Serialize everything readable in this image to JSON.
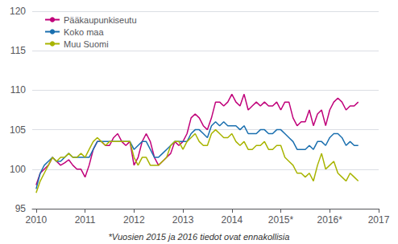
{
  "chart_data": {
    "type": "line",
    "annotations": [
      "*Vuosien 2015 ja 2016 tiedot ovat ennakollisia"
    ],
    "x": [
      2010,
      2010.083333,
      2010.166667,
      2010.25,
      2010.333333,
      2010.416667,
      2010.5,
      2010.583333,
      2010.666667,
      2010.75,
      2010.833333,
      2010.916667,
      2011,
      2011.083333,
      2011.166667,
      2011.25,
      2011.333333,
      2011.416667,
      2011.5,
      2011.583333,
      2011.666667,
      2011.75,
      2011.833333,
      2011.916667,
      2012,
      2012.083333,
      2012.166667,
      2012.25,
      2012.333333,
      2012.416667,
      2012.5,
      2012.583333,
      2012.666667,
      2012.75,
      2012.833333,
      2012.916667,
      2013,
      2013.083333,
      2013.166667,
      2013.25,
      2013.333333,
      2013.416667,
      2013.5,
      2013.583333,
      2013.666667,
      2013.75,
      2013.833333,
      2013.916667,
      2014,
      2014.083333,
      2014.166667,
      2014.25,
      2014.333333,
      2014.416667,
      2014.5,
      2014.583333,
      2014.666667,
      2014.75,
      2014.833333,
      2014.916667,
      2015,
      2015.083333,
      2015.166667,
      2015.25,
      2015.333333,
      2015.416667,
      2015.5,
      2015.583333,
      2015.666667,
      2015.75,
      2015.833333,
      2015.916667,
      2016,
      2016.083333,
      2016.166667,
      2016.25,
      2016.333333,
      2016.416667,
      2016.5,
      2016.583333
    ],
    "series": [
      {
        "name": "Pääkaupunkiseutu",
        "color": "#c0007a",
        "values": [
          98.0,
          99.5,
          100.0,
          100.5,
          101.5,
          101.0,
          100.5,
          100.8,
          101.2,
          100.5,
          100.0,
          100.0,
          99.0,
          100.5,
          102.5,
          103.5,
          103.5,
          103.0,
          103.0,
          104.0,
          104.5,
          103.5,
          103.0,
          103.5,
          100.5,
          101.5,
          103.5,
          104.5,
          103.5,
          101.5,
          100.5,
          101.0,
          101.5,
          102.0,
          103.5,
          103.0,
          103.5,
          104.5,
          106.5,
          107.0,
          106.5,
          105.5,
          105.0,
          106.5,
          108.5,
          108.5,
          108.0,
          108.5,
          109.5,
          108.5,
          108.0,
          109.5,
          107.5,
          108.0,
          108.5,
          108.0,
          108.5,
          108.0,
          108.0,
          108.5,
          107.5,
          108.5,
          108.5,
          106.5,
          105.5,
          106.0,
          106.0,
          107.5,
          105.5,
          107.0,
          107.5,
          105.5,
          107.5,
          108.5,
          109.0,
          108.5,
          107.5,
          108.0,
          108.0,
          108.5
        ]
      },
      {
        "name": "Koko maa",
        "color": "#1a6faf",
        "values": [
          97.5,
          99.5,
          100.5,
          101.0,
          101.5,
          101.0,
          101.0,
          101.5,
          102.0,
          101.5,
          101.5,
          101.5,
          101.5,
          101.5,
          102.5,
          103.5,
          103.5,
          103.5,
          103.5,
          103.5,
          103.5,
          103.5,
          103.5,
          103.5,
          102.5,
          103.0,
          103.5,
          103.5,
          102.5,
          101.5,
          101.5,
          102.0,
          102.5,
          103.0,
          103.5,
          103.5,
          103.5,
          103.5,
          104.5,
          105.0,
          105.0,
          104.5,
          104.0,
          105.5,
          106.0,
          105.5,
          106.0,
          105.5,
          105.5,
          105.5,
          105.0,
          105.5,
          104.5,
          104.5,
          104.5,
          105.0,
          105.0,
          104.5,
          104.5,
          105.0,
          105.0,
          104.5,
          104.0,
          103.5,
          102.5,
          102.5,
          102.5,
          103.0,
          102.5,
          103.5,
          103.5,
          103.0,
          104.0,
          104.5,
          104.5,
          104.0,
          103.0,
          103.5,
          103.0,
          103.0
        ]
      },
      {
        "name": "Muu Suomi",
        "color": "#a8b400",
        "values": [
          97.0,
          98.5,
          99.5,
          100.5,
          101.5,
          101.0,
          101.5,
          101.5,
          102.0,
          101.5,
          101.5,
          102.0,
          101.5,
          102.5,
          103.5,
          104.0,
          103.5,
          103.0,
          103.5,
          103.5,
          103.5,
          103.5,
          103.5,
          103.5,
          101.5,
          100.5,
          101.5,
          101.5,
          100.5,
          100.5,
          100.5,
          101.0,
          101.5,
          103.0,
          103.5,
          103.5,
          102.5,
          103.5,
          104.0,
          104.5,
          103.5,
          103.0,
          103.0,
          104.5,
          105.0,
          104.5,
          104.0,
          104.0,
          104.5,
          103.5,
          103.0,
          103.5,
          102.5,
          102.5,
          103.0,
          103.0,
          103.5,
          102.5,
          102.5,
          103.0,
          103.0,
          101.5,
          101.0,
          100.5,
          99.5,
          99.5,
          99.0,
          99.5,
          98.5,
          100.5,
          102.0,
          100.0,
          100.5,
          101.0,
          99.5,
          99.0,
          98.5,
          99.5,
          99.0,
          98.5
        ]
      }
    ],
    "xlim": [
      2009.92,
      2017
    ],
    "xticks": [
      2010,
      2011,
      2012,
      2013,
      2014,
      {
        "value": 2015,
        "label": "2015*"
      },
      {
        "value": 2016,
        "label": "2016*"
      },
      2017
    ],
    "ylim": [
      95,
      120
    ],
    "yticks": [
      95,
      100,
      105,
      110,
      115,
      120
    ],
    "grid": true,
    "legend": "upper left"
  }
}
